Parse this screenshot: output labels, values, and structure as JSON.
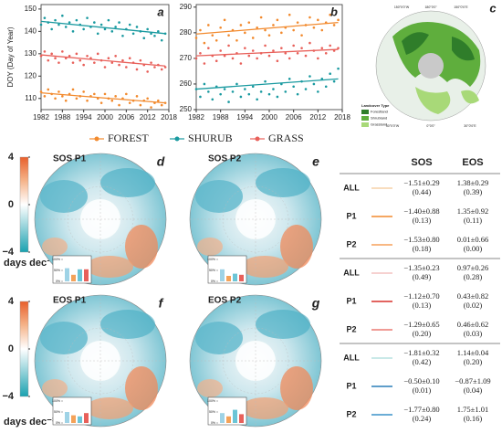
{
  "chart_data": [
    {
      "type": "scatter",
      "panel_label": "a",
      "ylabel": "DOY (Day of Year)",
      "xlim": [
        1982,
        2018
      ],
      "xticks": [
        1982,
        1988,
        1994,
        2000,
        2006,
        2012,
        2018
      ],
      "ylim": [
        105,
        152
      ],
      "yticks": [
        110,
        120,
        130,
        140,
        150
      ],
      "x": [
        1982,
        1983,
        1984,
        1985,
        1986,
        1987,
        1988,
        1989,
        1990,
        1991,
        1992,
        1993,
        1994,
        1995,
        1996,
        1997,
        1998,
        1999,
        2000,
        2001,
        2002,
        2003,
        2004,
        2005,
        2006,
        2007,
        2008,
        2009,
        2010,
        2011,
        2012,
        2013,
        2014,
        2015,
        2016,
        2017
      ],
      "series": [
        {
          "name": "FOREST",
          "color": "#f28a2e",
          "trend": [
            112.5,
            108
          ],
          "values": [
            113,
            111,
            114,
            112,
            110,
            113,
            111,
            109,
            112,
            114,
            110,
            111,
            113,
            109,
            111,
            112,
            110,
            108,
            112,
            110,
            109,
            111,
            107,
            110,
            112,
            108,
            109,
            111,
            107,
            109,
            110,
            106,
            108,
            109,
            107,
            108
          ]
        },
        {
          "name": "SHURUB",
          "color": "#1a9aa0",
          "trend": [
            144.5,
            139
          ],
          "values": [
            143,
            146,
            144,
            141,
            145,
            143,
            147,
            142,
            144,
            140,
            145,
            143,
            141,
            146,
            142,
            144,
            139,
            143,
            141,
            145,
            140,
            142,
            144,
            138,
            141,
            143,
            139,
            142,
            140,
            137,
            141,
            139,
            138,
            140,
            136,
            139
          ]
        },
        {
          "name": "GRASS",
          "color": "#e8605a",
          "trend": [
            129.5,
            124.5
          ],
          "values": [
            129,
            131,
            127,
            130,
            128,
            126,
            131,
            128,
            129,
            126,
            130,
            127,
            125,
            129,
            128,
            126,
            130,
            127,
            124,
            128,
            126,
            129,
            125,
            127,
            124,
            128,
            126,
            123,
            127,
            125,
            122,
            126,
            124,
            125,
            123,
            124
          ]
        }
      ]
    },
    {
      "type": "scatter",
      "panel_label": "b",
      "xlim": [
        1982,
        2018
      ],
      "xticks": [
        1982,
        1988,
        1994,
        2000,
        2006,
        2012,
        2018
      ],
      "ylim": [
        250,
        291
      ],
      "yticks": [
        250,
        260,
        270,
        280,
        290
      ],
      "x": [
        1982,
        1983,
        1984,
        1985,
        1986,
        1987,
        1988,
        1989,
        1990,
        1991,
        1992,
        1993,
        1994,
        1995,
        1996,
        1997,
        1998,
        1999,
        2000,
        2001,
        2002,
        2003,
        2004,
        2005,
        2006,
        2007,
        2008,
        2009,
        2010,
        2011,
        2012,
        2013,
        2014,
        2015,
        2016,
        2017
      ],
      "series": [
        {
          "color": "#f28a2e",
          "trend": [
            279.5,
            284
          ],
          "values": [
            278,
            281,
            276,
            283,
            279,
            277,
            282,
            285,
            279,
            281,
            277,
            283,
            280,
            284,
            278,
            282,
            286,
            281,
            279,
            283,
            285,
            280,
            282,
            287,
            281,
            284,
            279,
            283,
            286,
            282,
            285,
            281,
            284,
            287,
            283,
            285
          ]
        },
        {
          "color": "#1a9aa0",
          "trend": [
            258,
            262
          ],
          "values": [
            258,
            255,
            260,
            257,
            254,
            259,
            256,
            258,
            253,
            257,
            260,
            255,
            258,
            256,
            259,
            254,
            257,
            261,
            256,
            258,
            255,
            260,
            257,
            262,
            259,
            256,
            261,
            258,
            263,
            260,
            257,
            262,
            259,
            264,
            261,
            266
          ]
        },
        {
          "color": "#e8605a",
          "trend": [
            271,
            273.5
          ],
          "values": [
            270,
            272,
            268,
            274,
            271,
            269,
            273,
            271,
            275,
            270,
            272,
            268,
            274,
            271,
            273,
            270,
            272,
            275,
            271,
            273,
            269,
            274,
            272,
            270,
            275,
            272,
            274,
            271,
            276,
            273,
            270,
            274,
            272,
            275,
            273,
            274
          ]
        }
      ]
    }
  ],
  "landcover": {
    "panel_label": "c",
    "title": "Landcover Type",
    "classes": [
      {
        "name": "Forestland",
        "color": "#2f7d2a"
      },
      {
        "name": "Shrubland",
        "color": "#5fae3d"
      },
      {
        "name": "Grassland",
        "color": "#a8d978"
      }
    ],
    "lon_labels": [
      "150°0'0\"W",
      "180°0'0\"",
      "150°0'0\"E",
      "30°0'0\"W",
      "0°0'0\"",
      "30°0'0\"E"
    ]
  },
  "colorbar": {
    "ticks": [
      {
        "value": 4,
        "label": "4"
      },
      {
        "value": 0,
        "label": "0"
      },
      {
        "value": -4,
        "label": "−4"
      }
    ],
    "range": [
      -4,
      4
    ],
    "label": "days dec⁻¹"
  },
  "inset_yticks": [
    {
      "value": 0,
      "label": "0%"
    },
    {
      "value": 50,
      "label": "50%"
    },
    {
      "value": 100,
      "label": "100%"
    }
  ],
  "inset_colors": [
    "#9fd3e6",
    "#f4a259",
    "#6cc5d6",
    "#e8605a"
  ],
  "maps": [
    {
      "panel_label": "d",
      "title": "SOS P1",
      "inset": [
        60,
        30,
        55,
        55
      ]
    },
    {
      "panel_label": "e",
      "title": "SOS P2",
      "inset": [
        55,
        25,
        35,
        30
      ]
    },
    {
      "panel_label": "f",
      "title": "EOS P1",
      "inset": [
        50,
        35,
        30,
        45
      ]
    },
    {
      "panel_label": "g",
      "title": "EOS P2",
      "inset": [
        45,
        30,
        60,
        40
      ]
    }
  ],
  "table": {
    "header": [
      "SOS",
      "EOS"
    ],
    "rows": [
      {
        "group": "ALL",
        "color": "#f6d2a8",
        "sos": [
          "−1.51±0.29",
          "(0.44)"
        ],
        "eos": [
          "1.38±0.29",
          "(0.39)"
        ]
      },
      {
        "group": "P1",
        "color": "#f28a2e",
        "sos": [
          "−1.40±0.88",
          "(0.13)"
        ],
        "eos": [
          "1.35±0.92",
          "(0.11)"
        ]
      },
      {
        "group": "P2",
        "color": "#f5a05a",
        "sos": [
          "−1.53±0.80",
          "(0.18)"
        ],
        "eos": [
          "0.01±0.66",
          "(0.00)"
        ]
      },
      {
        "group": "ALL",
        "color": "#f4c2c0",
        "sos": [
          "−1.35±0.23",
          "(0.49)"
        ],
        "eos": [
          "0.97±0.26",
          "(0.28)"
        ]
      },
      {
        "group": "P1",
        "color": "#d9302c",
        "sos": [
          "−1.12±0.70",
          "(0.13)"
        ],
        "eos": [
          "0.43±0.82",
          "(0.02)"
        ]
      },
      {
        "group": "P2",
        "color": "#ec7a72",
        "sos": [
          "−1.29±0.65",
          "(0.20)"
        ],
        "eos": [
          "0.46±0.62",
          "(0.03)"
        ]
      },
      {
        "group": "ALL",
        "color": "#b7e2e0",
        "sos": [
          "−1.81±0.32",
          "(0.42)"
        ],
        "eos": [
          "1.14±0.04",
          "(0.20)"
        ]
      },
      {
        "group": "P1",
        "color": "#2a7fb8",
        "sos": [
          "−0.50±0.10",
          "(0.01)"
        ],
        "eos": [
          "−0.87±1.09",
          "(0.04)"
        ]
      },
      {
        "group": "P2",
        "color": "#3a92c8",
        "sos": [
          "−1.77±0.80",
          "(0.24)"
        ],
        "eos": [
          "1.75±1.01",
          "(0.16)"
        ]
      }
    ]
  }
}
